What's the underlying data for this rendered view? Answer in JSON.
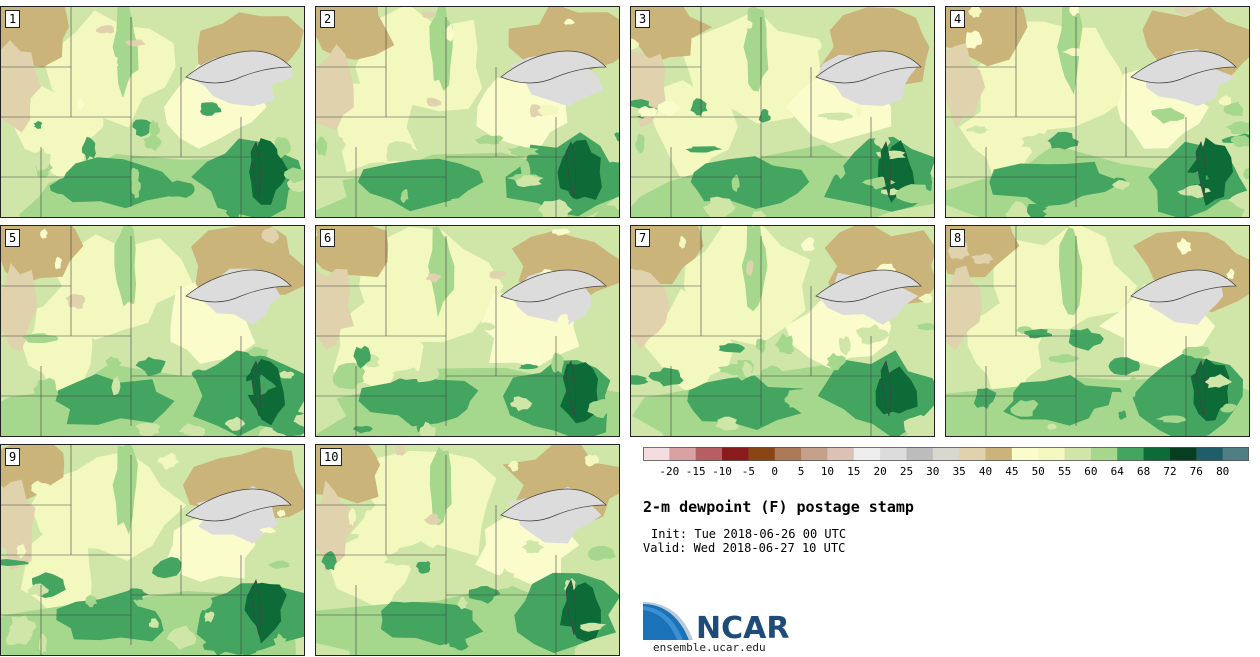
{
  "stamps": [
    {
      "label": "1",
      "seed": 11
    },
    {
      "label": "2",
      "seed": 23
    },
    {
      "label": "3",
      "seed": 37
    },
    {
      "label": "4",
      "seed": 41
    },
    {
      "label": "5",
      "seed": 53
    },
    {
      "label": "6",
      "seed": 67
    },
    {
      "label": "7",
      "seed": 71
    },
    {
      "label": "8",
      "seed": 83
    },
    {
      "label": "9",
      "seed": 97
    },
    {
      "label": "10",
      "seed": 109
    }
  ],
  "colorbar": {
    "ticks": [
      "-20",
      "-15",
      "-10",
      "-5",
      "0",
      "5",
      "10",
      "15",
      "20",
      "25",
      "30",
      "35",
      "40",
      "45",
      "50",
      "55",
      "60",
      "64",
      "68",
      "72",
      "76",
      "80"
    ],
    "colors": [
      "#f3dde0",
      "#d9a1a2",
      "#b75e62",
      "#8b1a1d",
      "#8a4512",
      "#ad7a58",
      "#c5a08a",
      "#dcc2b5",
      "#eeeeee",
      "#dcdcdc",
      "#bcbcbc",
      "#d9d8cf",
      "#dfd2ad",
      "#cab479",
      "#fbfccc",
      "#f3f8bf",
      "#cfe6a8",
      "#a5d78c",
      "#44a560",
      "#0d6b38",
      "#063f1f",
      "#1f5e68",
      "#4f7f82"
    ]
  },
  "title": "2-m dewpoint (F) postage stamp",
  "init": "Init: Tue 2018-06-26 00 UTC",
  "valid": "Valid: Wed 2018-06-27 10 UTC",
  "logo": {
    "name": "NCAR",
    "site": "ensemble.ucar.edu"
  }
}
